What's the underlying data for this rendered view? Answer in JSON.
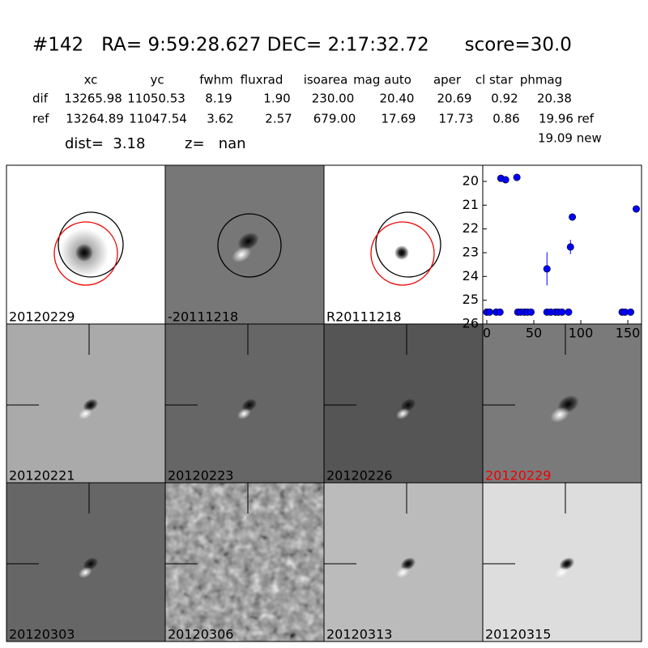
{
  "header": {
    "title": "#142   RA= 9:59:28.627 DEC= 2:17:32.72      score=30.0"
  },
  "table": {
    "columns": [
      "xc",
      "yc",
      "fwhm",
      "fluxrad",
      "isoarea",
      "mag auto",
      "aper",
      "cl star",
      "phmag"
    ],
    "rows": [
      {
        "label": "dif",
        "cells": [
          "13265.98",
          "11050.53",
          "8.19",
          "1.90",
          "230.00",
          "20.40",
          "20.69",
          "0.92",
          "20.38"
        ]
      },
      {
        "label": "ref",
        "cells": [
          "13264.89",
          "11047.54",
          "3.62",
          "2.57",
          "679.00",
          "17.69",
          "17.73",
          "0.86",
          "19.96 ref"
        ]
      }
    ],
    "extra": "19.09 new"
  },
  "dist": "dist=  3.18",
  "z": "z=   nan",
  "panels": [
    "20120229",
    "-20111218",
    "R20111218",
    "20120221",
    "20120223",
    "20120226",
    "20120229",
    "20120303",
    "20120306",
    "20120313",
    "20120315"
  ],
  "chart_data": {
    "type": "scatter",
    "x": [
      0,
      3,
      10,
      14,
      15,
      20,
      32,
      33,
      36,
      40,
      43,
      47,
      64,
      68,
      73,
      76,
      80,
      87,
      64,
      89,
      91,
      144,
      147,
      153,
      159
    ],
    "values": [
      25.5,
      25.5,
      25.5,
      25.5,
      19.87,
      19.93,
      19.83,
      25.5,
      25.5,
      25.5,
      25.5,
      25.5,
      25.5,
      25.5,
      25.5,
      25.5,
      25.5,
      25.5,
      23.68,
      22.76,
      21.5,
      25.5,
      25.5,
      25.5,
      21.16
    ],
    "errors": [
      null,
      null,
      null,
      null,
      null,
      null,
      null,
      null,
      null,
      null,
      null,
      null,
      null,
      null,
      null,
      null,
      null,
      null,
      0.7,
      0.3,
      null,
      null,
      null,
      null,
      null
    ],
    "color": "#0000ff",
    "xlim": [
      -4.3,
      164.6
    ],
    "ylim": [
      26,
      19.32
    ],
    "xticks": [
      0,
      50,
      100,
      150
    ],
    "yticks": [
      20,
      21,
      22,
      23,
      24,
      25,
      26
    ]
  }
}
